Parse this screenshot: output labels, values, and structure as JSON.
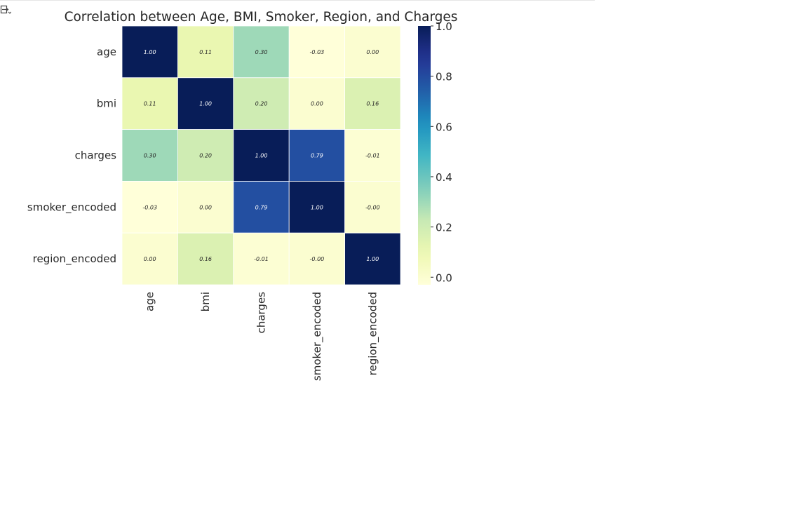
{
  "output_toggle": {
    "icon": "output-toggle-icon"
  },
  "chart_data": {
    "type": "heatmap",
    "title": "Correlation between Age, BMI, Smoker, Region, and Charges",
    "x_categories": [
      "age",
      "bmi",
      "charges",
      "smoker_encoded",
      "region_encoded"
    ],
    "y_categories": [
      "age",
      "bmi",
      "charges",
      "smoker_encoded",
      "region_encoded"
    ],
    "values": [
      [
        1.0,
        0.11,
        0.3,
        -0.03,
        0.0
      ],
      [
        0.11,
        1.0,
        0.2,
        0.0,
        0.16
      ],
      [
        0.3,
        0.2,
        1.0,
        0.79,
        -0.01
      ],
      [
        -0.03,
        0.0,
        0.79,
        1.0,
        -0.0
      ],
      [
        0.0,
        0.16,
        -0.01,
        -0.0,
        1.0
      ]
    ],
    "value_labels": [
      [
        "1.00",
        "0.11",
        "0.30",
        "-0.03",
        "0.00"
      ],
      [
        "0.11",
        "1.00",
        "0.20",
        "0.00",
        "0.16"
      ],
      [
        "0.30",
        "0.20",
        "1.00",
        "0.79",
        "-0.01"
      ],
      [
        "-0.03",
        "0.00",
        "0.79",
        "1.00",
        "-0.00"
      ],
      [
        "0.00",
        "0.16",
        "-0.01",
        "-0.00",
        "1.00"
      ]
    ],
    "colormap": "YlGnBu",
    "colorbar": {
      "range": [
        -0.03,
        1.0
      ],
      "ticks": [
        0.0,
        0.2,
        0.4,
        0.6,
        0.8,
        1.0
      ],
      "tick_labels": [
        "0.0",
        "0.2",
        "0.4",
        "0.6",
        "0.8",
        "1.0"
      ]
    },
    "annot": true,
    "cell_border_color": "#ffffff"
  }
}
